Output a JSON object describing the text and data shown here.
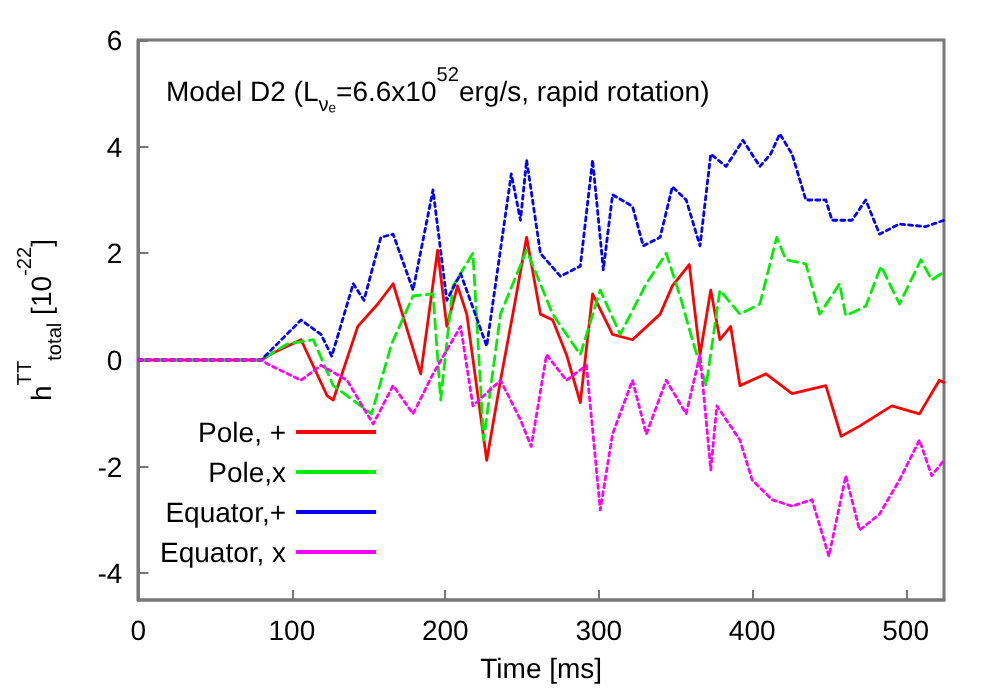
{
  "chart_data": {
    "type": "line",
    "title": "Model D2 (L$_{νₑ}$=6.6x10$^{52}$erg/s, rapid rotation)",
    "xlabel": "Time [ms]",
    "ylabel": "h$^{TT}$$_{total}$ [10$^{-22}$]",
    "xlim": [
      0,
      525
    ],
    "xticks": [
      0,
      100,
      200,
      300,
      400,
      500
    ],
    "ylim": [
      -4.5,
      6
    ],
    "yticks": [
      -4,
      -2,
      0,
      2,
      4,
      6
    ],
    "grid": false,
    "legend": "bottom left",
    "marker": "none",
    "series": [
      {
        "name": "Pole, +",
        "color": "#ff0000",
        "line_style": "solid",
        "x": [
          0,
          80,
          87,
          106,
          123,
          127,
          143,
          156,
          166,
          184,
          195,
          201,
          208,
          214,
          227,
          236,
          244,
          253,
          262,
          270,
          279,
          288,
          296,
          309,
          322,
          340,
          348,
          359,
          366,
          373,
          379,
          386,
          392,
          409,
          426,
          448,
          458,
          470,
          491,
          509,
          522,
          525
        ],
        "values": [
          0,
          0,
          0.12,
          0.38,
          -0.67,
          -0.75,
          0.63,
          1.05,
          1.43,
          -0.26,
          2.06,
          0.63,
          1.39,
          0.86,
          -1.88,
          -0.38,
          0.86,
          2.3,
          0.86,
          0.75,
          0.1,
          -0.8,
          1.24,
          0.48,
          0.38,
          0.86,
          1.39,
          1.79,
          0.1,
          1.31,
          0.38,
          0.63,
          -0.48,
          -0.26,
          -0.63,
          -0.48,
          -1.43,
          -1.24,
          -0.86,
          -1.01,
          -0.38,
          -0.42
        ]
      },
      {
        "name": "Pole,x",
        "color": "#00ee00",
        "line_style": "dashed",
        "x": [
          0,
          80,
          97,
          114,
          127,
          152,
          165,
          179,
          192,
          197,
          205,
          218,
          225,
          236,
          253,
          270,
          288,
          301,
          314,
          331,
          344,
          353,
          361,
          370,
          379,
          392,
          405,
          416,
          422,
          435,
          444,
          457,
          461,
          474,
          484,
          496,
          510,
          517,
          525
        ],
        "values": [
          0,
          0,
          0.3,
          0.38,
          -0.48,
          -1.01,
          0.3,
          1.2,
          1.24,
          -0.75,
          1.39,
          2,
          -1.5,
          0.86,
          2.06,
          0.86,
          0.1,
          1.31,
          0.48,
          1.43,
          2,
          1.2,
          0.38,
          -0.48,
          1.31,
          0.86,
          1.05,
          2.3,
          1.88,
          1.8,
          0.86,
          1.43,
          0.83,
          1.01,
          1.76,
          1.05,
          1.88,
          1.5,
          1.65
        ]
      },
      {
        "name": "Equator,+",
        "color": "#0000ff",
        "line_style": "dotted",
        "x": [
          0,
          80,
          106,
          119,
          126,
          140,
          147,
          158,
          166,
          179,
          192,
          201,
          210,
          227,
          243,
          249,
          253,
          262,
          275,
          288,
          296,
          303,
          309,
          322,
          329,
          340,
          348,
          357,
          366,
          373,
          383,
          394,
          405,
          412,
          418,
          426,
          435,
          448,
          452,
          465,
          474,
          483,
          496,
          513,
          525
        ],
        "values": [
          0,
          0,
          0.75,
          0.48,
          0.07,
          1.43,
          1.12,
          2.3,
          2.36,
          1.31,
          3.19,
          1.12,
          1.62,
          0.26,
          3.49,
          2.62,
          3.75,
          2,
          1.57,
          1.76,
          3.75,
          1.69,
          3.1,
          2.88,
          2.14,
          2.3,
          3.25,
          3,
          2.14,
          3.86,
          3.63,
          4.12,
          3.63,
          3.86,
          4.24,
          3.86,
          3,
          3,
          2.62,
          2.62,
          3,
          2.36,
          2.55,
          2.5,
          2.62
        ]
      },
      {
        "name": "Equator, x",
        "color": "#ff00ff",
        "line_style": "dotted",
        "x": [
          0,
          80,
          84,
          106,
          119,
          136,
          153,
          166,
          179,
          192,
          210,
          218,
          236,
          249,
          256,
          266,
          279,
          292,
          301,
          309,
          322,
          331,
          344,
          357,
          366,
          373,
          377,
          392,
          400,
          413,
          426,
          439,
          450,
          461,
          470,
          483,
          496,
          509,
          517,
          525
        ],
        "values": [
          0,
          0,
          -0.07,
          -0.38,
          -0.1,
          -0.38,
          -1.2,
          -0.48,
          -1.01,
          -0.26,
          0.63,
          -0.86,
          -0.38,
          -1.12,
          -1.62,
          0.1,
          -0.38,
          -0.1,
          -2.81,
          -1.39,
          -0.38,
          -1.39,
          -0.38,
          -1.01,
          0.1,
          -2.06,
          -0.86,
          -1.5,
          -2.25,
          -2.62,
          -2.74,
          -2.62,
          -3.68,
          -2.17,
          -3.19,
          -2.89,
          -2.25,
          -1.5,
          -2.17,
          -1.88
        ]
      }
    ]
  }
}
